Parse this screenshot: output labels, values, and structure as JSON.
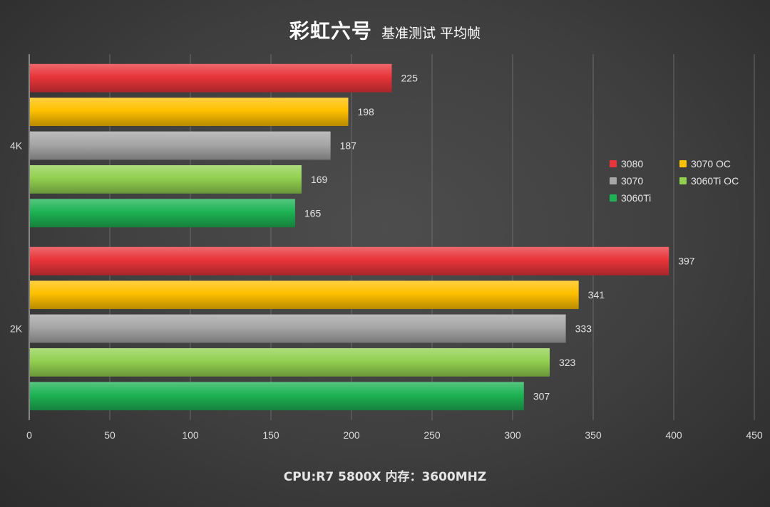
{
  "title": {
    "main": "彩虹六号",
    "sub": "基准测试 平均帧"
  },
  "footer": "CPU:R7 5800X 内存：3600MHZ",
  "colors": {
    "3080": "#e8353b",
    "3070 OC": "#ffc000",
    "3070": "#a6a6a6",
    "3060Ti OC": "#92d050",
    "3060Ti": "#1db354"
  },
  "chart_data": {
    "type": "bar",
    "orientation": "horizontal",
    "title": "彩虹六号 基准测试 平均帧",
    "xlabel": "CPU:R7 5800X 内存：3600MHZ",
    "categories": [
      "4K",
      "2K"
    ],
    "series": [
      {
        "name": "3080",
        "values": [
          225,
          397
        ]
      },
      {
        "name": "3070 OC",
        "values": [
          198,
          341
        ]
      },
      {
        "name": "3070",
        "values": [
          187,
          333
        ]
      },
      {
        "name": "3060Ti OC",
        "values": [
          169,
          323
        ]
      },
      {
        "name": "3060Ti",
        "values": [
          165,
          307
        ]
      }
    ],
    "xlim": [
      0,
      450
    ],
    "xticks": [
      0,
      50,
      100,
      150,
      200,
      250,
      300,
      350,
      400,
      450
    ],
    "grid": true,
    "legend_position": "right"
  },
  "legend": [
    {
      "label": "3080"
    },
    {
      "label": "3070 OC"
    },
    {
      "label": "3070"
    },
    {
      "label": "3060Ti OC"
    },
    {
      "label": "3060Ti"
    }
  ]
}
